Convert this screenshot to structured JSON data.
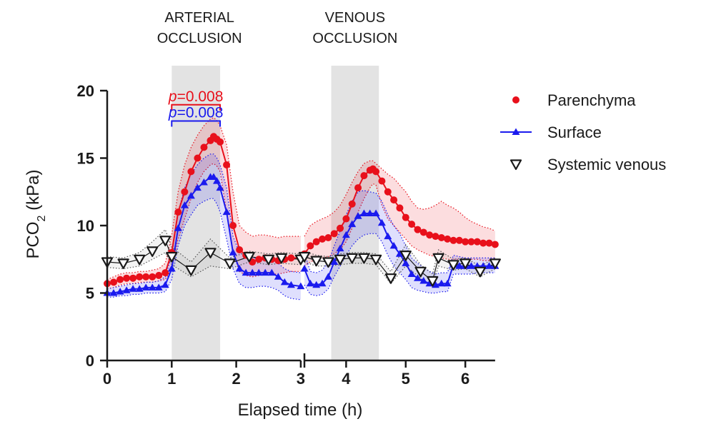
{
  "chart_data": {
    "type": "line",
    "xlabel": "Elapsed time (h)",
    "ylabel_main": "PCO",
    "ylabel_sub": "2",
    "ylabel_unit": " (kPa)",
    "ylim": [
      0,
      20
    ],
    "yticks": [
      0,
      5,
      10,
      15,
      20
    ],
    "x_segments": [
      {
        "xlim": [
          0,
          3
        ],
        "ticks": [
          0,
          1,
          2,
          3
        ]
      },
      {
        "xlim": [
          3.3,
          6.5
        ],
        "ticks": [
          4,
          5,
          6
        ]
      }
    ],
    "shaded_regions": [
      {
        "x": [
          1.0,
          1.75
        ],
        "label_lines": [
          "ARTERIAL",
          "OCCLUSION"
        ]
      },
      {
        "x": [
          3.75,
          4.55
        ],
        "label_lines": [
          "VENOUS",
          "OCCLUSION"
        ]
      }
    ],
    "annotations": [
      {
        "p_italic": "p",
        "text": "=0.008",
        "color": "#e8101b",
        "x": [
          1.0,
          1.75
        ],
        "y": 18.95
      },
      {
        "p_italic": "p",
        "text": "=0.008",
        "color": "#1a1aee",
        "x": [
          1.0,
          1.75
        ],
        "y": 17.75
      }
    ],
    "series": [
      {
        "name": "Parenchyma",
        "color": "#e8101b",
        "marker": "circle",
        "segments": [
          {
            "x": [
              0,
              0.1,
              0.2,
              0.3,
              0.4,
              0.5,
              0.6,
              0.7,
              0.8,
              0.9,
              1.0,
              1.1,
              1.2,
              1.3,
              1.4,
              1.5,
              1.6,
              1.65,
              1.7,
              1.75,
              1.85,
              1.95,
              2.05,
              2.15,
              2.25,
              2.35,
              2.45,
              2.55,
              2.65,
              2.75,
              2.85,
              3.0
            ],
            "y": [
              5.7,
              5.8,
              6.0,
              6.1,
              6.1,
              6.2,
              6.2,
              6.2,
              6.3,
              6.5,
              8.0,
              11.0,
              12.5,
              14.0,
              15.0,
              15.8,
              16.3,
              16.6,
              16.4,
              16.2,
              14.5,
              10.0,
              8.2,
              7.8,
              7.3,
              7.5,
              7.6,
              7.5,
              7.4,
              7.5,
              7.6,
              7.6
            ],
            "lower": [
              5.3,
              5.4,
              5.6,
              5.7,
              5.7,
              5.8,
              5.8,
              5.8,
              5.9,
              6.0,
              6.8,
              9.0,
              10.5,
              12.0,
              13.2,
              14.0,
              14.5,
              14.6,
              14.4,
              14.0,
              11.0,
              8.0,
              6.6,
              6.3,
              6.2,
              6.3,
              6.4,
              6.4,
              6.4,
              6.5,
              6.6,
              6.6
            ],
            "upper": [
              6.0,
              6.2,
              6.4,
              6.5,
              6.5,
              6.6,
              6.6,
              6.7,
              6.8,
              7.2,
              9.3,
              12.5,
              14.5,
              15.8,
              16.7,
              17.4,
              17.9,
              18.0,
              17.8,
              17.4,
              16.0,
              12.5,
              10.0,
              9.5,
              9.2,
              9.3,
              9.3,
              9.2,
              9.1,
              9.2,
              9.2,
              9.2
            ]
          },
          {
            "x": [
              3.3,
              3.4,
              3.5,
              3.6,
              3.7,
              3.8,
              3.9,
              4.0,
              4.1,
              4.2,
              4.3,
              4.4,
              4.45,
              4.5,
              4.6,
              4.7,
              4.8,
              4.9,
              5.0,
              5.1,
              5.2,
              5.3,
              5.4,
              5.5,
              5.6,
              5.7,
              5.8,
              5.9,
              6.0,
              6.1,
              6.2,
              6.3,
              6.4,
              6.5
            ],
            "y": [
              7.9,
              8.5,
              8.8,
              9.0,
              9.1,
              9.4,
              9.8,
              10.5,
              11.6,
              12.8,
              13.7,
              14.1,
              14.2,
              14.0,
              13.3,
              12.5,
              11.9,
              11.3,
              10.6,
              10.1,
              9.7,
              9.5,
              9.3,
              9.2,
              9.1,
              9.0,
              8.9,
              8.9,
              8.8,
              8.8,
              8.8,
              8.7,
              8.7,
              8.6
            ],
            "lower": [
              7.0,
              7.3,
              7.5,
              7.6,
              7.7,
              7.9,
              8.2,
              8.8,
              9.8,
              11.0,
              12.0,
              12.8,
              13.1,
              13.0,
              11.5,
              10.5,
              10.0,
              9.5,
              9.0,
              8.5,
              8.2,
              8.0,
              7.8,
              7.7,
              7.6,
              7.5,
              7.5,
              7.5,
              7.5,
              7.5,
              7.5,
              7.4,
              7.4,
              7.4
            ],
            "upper": [
              9.2,
              10.0,
              10.3,
              10.5,
              10.7,
              11.0,
              11.5,
              12.3,
              13.2,
              14.0,
              14.6,
              14.8,
              14.8,
              14.6,
              14.2,
              13.8,
              13.5,
              13.0,
              12.5,
              11.8,
              11.3,
              11.2,
              11.3,
              11.5,
              11.8,
              11.5,
              11.3,
              11.0,
              10.6,
              10.3,
              10.1,
              9.9,
              9.8,
              9.6
            ]
          }
        ]
      },
      {
        "name": "Surface",
        "color": "#1a1aee",
        "marker": "triangle-up",
        "segments": [
          {
            "x": [
              0,
              0.1,
              0.2,
              0.3,
              0.4,
              0.5,
              0.6,
              0.7,
              0.8,
              0.9,
              1.0,
              1.1,
              1.2,
              1.3,
              1.4,
              1.5,
              1.6,
              1.65,
              1.7,
              1.75,
              1.85,
              1.95,
              2.05,
              2.15,
              2.25,
              2.35,
              2.45,
              2.55,
              2.65,
              2.75,
              2.85,
              3.0
            ],
            "y": [
              5.0,
              5.0,
              5.1,
              5.2,
              5.3,
              5.3,
              5.4,
              5.4,
              5.4,
              5.6,
              6.8,
              9.8,
              11.5,
              12.2,
              12.8,
              13.2,
              13.6,
              13.6,
              13.3,
              12.8,
              11.0,
              8.0,
              6.8,
              6.5,
              6.5,
              6.5,
              6.5,
              6.5,
              6.2,
              5.8,
              5.6,
              5.5
            ],
            "lower": [
              4.7,
              4.7,
              4.8,
              4.8,
              4.9,
              4.9,
              5.0,
              5.0,
              5.0,
              5.1,
              6.0,
              8.5,
              10.0,
              10.8,
              11.5,
              11.8,
              12.0,
              12.0,
              11.6,
              11.0,
              9.0,
              6.8,
              5.7,
              5.4,
              5.4,
              5.5,
              5.5,
              5.4,
              5.2,
              4.8,
              4.6,
              4.5
            ],
            "upper": [
              5.3,
              5.4,
              5.5,
              5.6,
              5.7,
              5.7,
              5.8,
              5.8,
              5.9,
              6.2,
              7.8,
              11.0,
              12.8,
              13.8,
              14.5,
              15.0,
              15.3,
              15.3,
              15.0,
              14.5,
              12.8,
              9.2,
              8.0,
              7.7,
              7.6,
              7.6,
              7.6,
              7.5,
              7.2,
              6.8,
              6.6,
              6.5
            ]
          },
          {
            "x": [
              3.3,
              3.4,
              3.5,
              3.6,
              3.7,
              3.8,
              3.9,
              4.0,
              4.1,
              4.2,
              4.3,
              4.4,
              4.5,
              4.6,
              4.7,
              4.8,
              4.9,
              5.0,
              5.1,
              5.2,
              5.3,
              5.4,
              5.5,
              5.6,
              5.7,
              5.8,
              5.9,
              6.0,
              6.1,
              6.2,
              6.3,
              6.4,
              6.5
            ],
            "y": [
              6.8,
              5.7,
              5.6,
              5.7,
              6.2,
              7.3,
              8.3,
              9.3,
              10.1,
              10.7,
              10.9,
              10.9,
              10.9,
              10.2,
              9.2,
              8.5,
              7.9,
              7.2,
              6.4,
              6.1,
              5.9,
              5.7,
              5.6,
              5.7,
              5.7,
              7.1,
              7.0,
              7.0,
              7.0,
              7.0,
              7.0,
              7.0,
              7.0
            ],
            "lower": [
              5.6,
              4.9,
              4.8,
              4.9,
              5.3,
              6.2,
              7.0,
              7.8,
              8.5,
              9.0,
              9.3,
              9.4,
              9.4,
              8.8,
              7.8,
              7.0,
              6.5,
              6.0,
              5.4,
              5.2,
              5.1,
              5.0,
              5.0,
              5.1,
              5.1,
              6.4,
              6.4,
              6.4,
              6.4,
              6.5,
              6.5,
              6.5,
              6.5
            ],
            "upper": [
              8.0,
              6.6,
              6.5,
              6.7,
              7.3,
              8.5,
              9.6,
              10.8,
              11.8,
              12.5,
              12.6,
              12.5,
              12.4,
              11.8,
              10.8,
              10.0,
              9.4,
              8.5,
              7.6,
              7.2,
              6.9,
              6.6,
              6.4,
              6.5,
              6.5,
              7.8,
              7.7,
              7.6,
              7.6,
              7.6,
              7.6,
              7.6,
              7.6
            ]
          }
        ]
      },
      {
        "name": "Systemic venous",
        "color": "#1a1a1a",
        "marker": "triangle-down-open",
        "segments": [
          {
            "x": [
              0.0,
              0.25,
              0.5,
              0.7,
              0.9,
              1.0,
              1.3,
              1.6,
              1.9,
              2.2,
              2.5,
              2.7,
              3.0
            ],
            "y": [
              7.3,
              7.2,
              7.5,
              8.1,
              8.9,
              7.7,
              6.7,
              8.0,
              7.2,
              7.7,
              7.5,
              7.6,
              7.5
            ],
            "lower": [
              6.9,
              6.8,
              7.0,
              7.5,
              8.0,
              7.1,
              6.2,
              7.0,
              6.8,
              7.3,
              7.1,
              7.2,
              7.1
            ],
            "upper": [
              7.7,
              7.6,
              8.0,
              8.8,
              9.7,
              8.4,
              7.3,
              9.0,
              7.6,
              8.1,
              7.9,
              8.0,
              7.9
            ]
          },
          {
            "x": [
              3.3,
              3.5,
              3.7,
              3.9,
              4.1,
              4.3,
              4.5,
              4.75,
              5.0,
              5.25,
              5.45,
              5.55,
              5.8,
              6.0,
              6.25,
              6.5
            ],
            "y": [
              7.7,
              7.4,
              7.3,
              7.5,
              7.6,
              7.6,
              7.5,
              6.1,
              7.8,
              6.6,
              5.9,
              7.6,
              7.1,
              7.2,
              6.6,
              7.2
            ],
            "lower": [
              7.3,
              7.0,
              7.0,
              7.1,
              7.2,
              7.2,
              7.1,
              5.7,
              7.0,
              6.1,
              5.5,
              7.0,
              6.7,
              6.8,
              6.2,
              6.8
            ],
            "upper": [
              8.1,
              7.8,
              7.7,
              7.9,
              8.0,
              8.0,
              7.9,
              6.6,
              8.6,
              7.1,
              6.4,
              8.2,
              7.5,
              7.6,
              7.0,
              7.6
            ]
          }
        ]
      }
    ]
  }
}
